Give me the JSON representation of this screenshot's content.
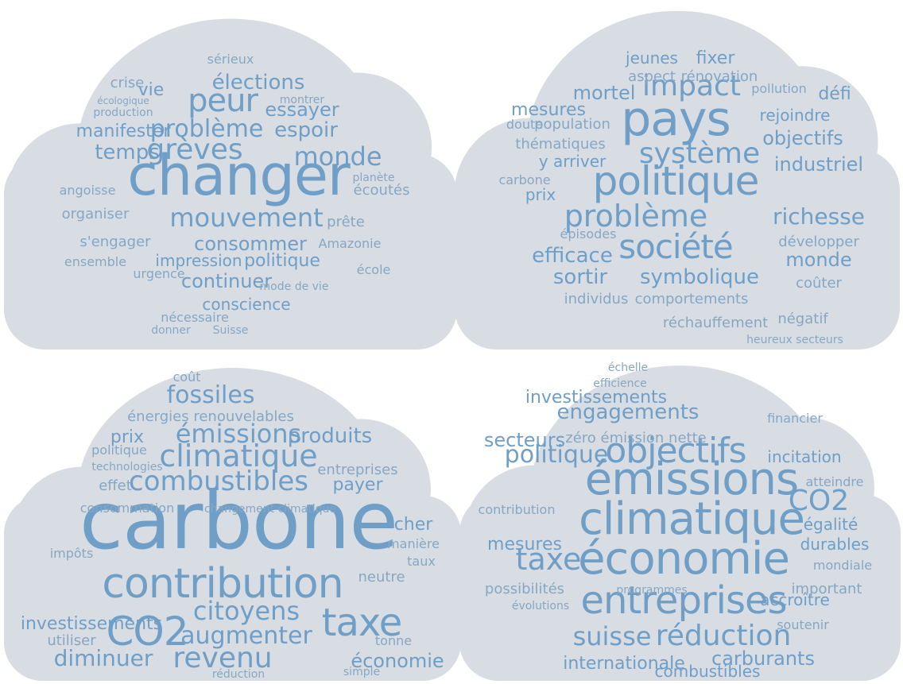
{
  "clouds": [
    {
      "words": [
        "changer",
        "peur",
        "grèves",
        "mouvement",
        "problème",
        "élections",
        "essayer",
        "espoir",
        "monde",
        "temps",
        "consommer",
        "continuer",
        "politique",
        "impression",
        "vie",
        "crise",
        "sérieux",
        "manifester",
        "organiser",
        "ensemble",
        "conscience",
        "s'engager",
        "écoutés",
        "prête",
        "Amazonie",
        "école",
        "urgence",
        "nécessaire",
        "Suisse",
        "donner",
        "montrer",
        "planète",
        "angoisse",
        "mode de vie",
        "production",
        "écologique"
      ]
    },
    {
      "words": [
        "pays",
        "politique",
        "société",
        "système",
        "problème",
        "impact",
        "efficace",
        "sortir",
        "symbolique",
        "richesse",
        "industriel",
        "fixer",
        "mortel",
        "mesures",
        "jeunes",
        "défi",
        "objectifs",
        "rejoindre",
        "monde",
        "développer",
        "coûter",
        "prix",
        "population",
        "thématiques",
        "y arriver",
        "comportements",
        "réchauffement",
        "individus",
        "épisodes",
        "négatif",
        "aspect",
        "rénovation",
        "pollution",
        "carbone",
        "heureux secteurs",
        "doute"
      ]
    },
    {
      "words": [
        "carbone",
        "contribution",
        "taxe",
        "combustibles",
        "climatique",
        "CO2",
        "citoyens",
        "revenu",
        "augmenter",
        "diminuer",
        "émissions",
        "fossiles",
        "prix",
        "produits",
        "énergies renouvelables",
        "économie",
        "investissements",
        "cher",
        "payer",
        "entreprises",
        "effet",
        "consommation",
        "impôts",
        "neutre",
        "manière",
        "taux",
        "politique",
        "technologies",
        "coût",
        "changement climatique",
        "utiliser",
        "tonne",
        "simple",
        "réduction"
      ]
    },
    {
      "words": [
        "émissions",
        "climatique",
        "économie",
        "objectifs",
        "entreprises",
        "réduction",
        "suisse",
        "taxe",
        "CO2",
        "politique",
        "engagements",
        "investissements",
        "secteurs",
        "zéro émission nette",
        "incitation",
        "égalité",
        "durables",
        "carburants",
        "internationale",
        "combustibles",
        "possibilités",
        "mesures",
        "contribution",
        "accroître",
        "soutenir",
        "important",
        "mondiale",
        "financier",
        "atteindre",
        "efficience",
        "échelle",
        "évolutions",
        "programmes"
      ]
    }
  ]
}
